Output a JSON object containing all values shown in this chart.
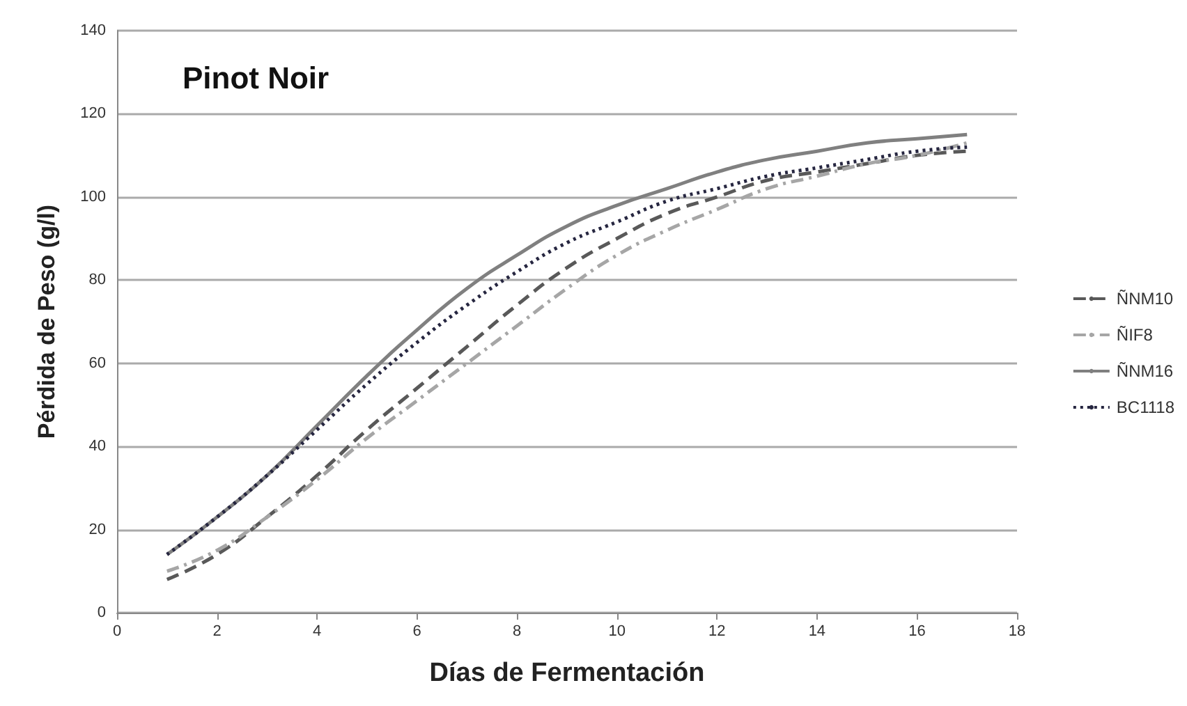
{
  "chart_data": {
    "type": "line",
    "title": "Pinot Noir",
    "xlabel": "Días de Fermentación",
    "ylabel": "Pérdida de Peso (g/l)",
    "x": [
      1,
      2,
      3,
      4,
      5,
      6,
      7,
      8,
      9,
      10,
      11,
      12,
      13,
      14,
      15,
      16,
      17
    ],
    "series": [
      {
        "name": "ÑNM10",
        "color": "#595959",
        "line_style": "dashed",
        "values": [
          8,
          14,
          23,
          33,
          44,
          54,
          64,
          74,
          83,
          90,
          96,
          100,
          104,
          106,
          108,
          110,
          111
        ]
      },
      {
        "name": "ÑIF8",
        "color": "#a6a6a6",
        "line_style": "dashdot",
        "values": [
          10,
          15,
          23,
          32,
          42,
          51,
          60,
          69,
          78,
          86,
          92,
          97,
          102,
          105,
          108,
          110,
          113
        ]
      },
      {
        "name": "ÑNM16",
        "color": "#808080",
        "line_style": "solid",
        "values": [
          14,
          23,
          33,
          45,
          57,
          68,
          78,
          86,
          93,
          98,
          102,
          106,
          109,
          111,
          113,
          114,
          115
        ]
      },
      {
        "name": "BC1118",
        "color": "#262640",
        "line_style": "dotted",
        "values": [
          14,
          23,
          33,
          44,
          55,
          65,
          74,
          82,
          89,
          94,
          99,
          102,
          105,
          107,
          109,
          111,
          112
        ]
      }
    ],
    "xlim": [
      0,
      18
    ],
    "xticks": [
      0,
      2,
      4,
      6,
      8,
      10,
      12,
      14,
      16,
      18
    ],
    "ylim": [
      0,
      140
    ],
    "yticks": [
      0,
      20,
      40,
      60,
      80,
      100,
      120,
      140
    ],
    "grid": "y",
    "legend": "right",
    "marker": "none"
  }
}
